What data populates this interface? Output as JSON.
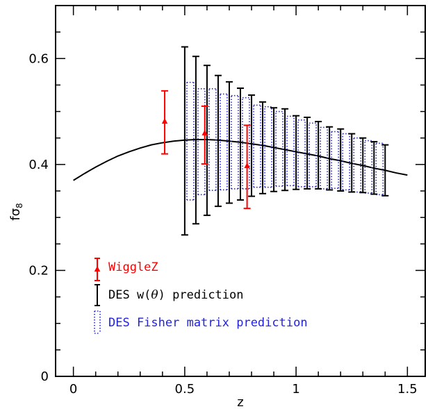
{
  "chart_data": {
    "type": "scatter",
    "xlabel": "z",
    "ylabel_main": "fσ",
    "ylabel_sub": "8",
    "xlim": [
      -0.08,
      1.58
    ],
    "ylim": [
      0,
      0.7
    ],
    "xticks": [
      {
        "value": 0,
        "label": "0"
      },
      {
        "value": 0.5,
        "label": "0.5"
      },
      {
        "value": 1,
        "label": "1"
      },
      {
        "value": 1.5,
        "label": "1.5"
      }
    ],
    "yticks": [
      {
        "value": 0,
        "label": "0"
      },
      {
        "value": 0.2,
        "label": "0.2"
      },
      {
        "value": 0.4,
        "label": "0.4"
      },
      {
        "value": 0.6,
        "label": "0.6"
      }
    ],
    "model_curve": {
      "color": "#000000",
      "x": [
        0.0,
        0.05,
        0.1,
        0.15,
        0.2,
        0.25,
        0.3,
        0.35,
        0.4,
        0.45,
        0.5,
        0.55,
        0.6,
        0.65,
        0.7,
        0.75,
        0.8,
        0.85,
        0.9,
        0.95,
        1.0,
        1.05,
        1.1,
        1.15,
        1.2,
        1.25,
        1.3,
        1.35,
        1.4,
        1.45,
        1.5
      ],
      "y": [
        0.37,
        0.383,
        0.395,
        0.406,
        0.416,
        0.424,
        0.431,
        0.437,
        0.441,
        0.444,
        0.446,
        0.447,
        0.447,
        0.446,
        0.444,
        0.442,
        0.439,
        0.436,
        0.432,
        0.428,
        0.424,
        0.42,
        0.416,
        0.411,
        0.407,
        0.402,
        0.398,
        0.393,
        0.389,
        0.384,
        0.38
      ]
    },
    "series": [
      {
        "name": "WiggleZ",
        "color": "#ff0000",
        "points": [
          {
            "x": 0.41,
            "y": 0.481,
            "low": 0.42,
            "high": 0.539
          },
          {
            "x": 0.59,
            "y": 0.459,
            "low": 0.401,
            "high": 0.51
          },
          {
            "x": 0.78,
            "y": 0.397,
            "low": 0.317,
            "high": 0.474
          }
        ]
      },
      {
        "name": "DES w(θ) prediction",
        "color": "#000000",
        "points": [
          {
            "x": 0.5,
            "low": 0.267,
            "high": 0.622
          },
          {
            "x": 0.55,
            "low": 0.288,
            "high": 0.604
          },
          {
            "x": 0.6,
            "low": 0.304,
            "high": 0.587
          },
          {
            "x": 0.65,
            "low": 0.321,
            "high": 0.568
          },
          {
            "x": 0.7,
            "low": 0.327,
            "high": 0.556
          },
          {
            "x": 0.75,
            "low": 0.333,
            "high": 0.544
          },
          {
            "x": 0.8,
            "low": 0.34,
            "high": 0.531
          },
          {
            "x": 0.85,
            "low": 0.345,
            "high": 0.518
          },
          {
            "x": 0.9,
            "low": 0.349,
            "high": 0.507
          },
          {
            "x": 0.95,
            "low": 0.351,
            "high": 0.505
          },
          {
            "x": 1.0,
            "low": 0.353,
            "high": 0.492
          },
          {
            "x": 1.05,
            "low": 0.354,
            "high": 0.489
          },
          {
            "x": 1.1,
            "low": 0.354,
            "high": 0.481
          },
          {
            "x": 1.15,
            "low": 0.352,
            "high": 0.471
          },
          {
            "x": 1.2,
            "low": 0.35,
            "high": 0.467
          },
          {
            "x": 1.25,
            "low": 0.348,
            "high": 0.458
          },
          {
            "x": 1.3,
            "low": 0.347,
            "high": 0.45
          },
          {
            "x": 1.35,
            "low": 0.344,
            "high": 0.443
          },
          {
            "x": 1.4,
            "low": 0.341,
            "high": 0.437
          }
        ]
      },
      {
        "name": "DES Fisher matrix prediction",
        "color": "#2222dd",
        "points": [
          {
            "x": 0.525,
            "low": 0.333,
            "high": 0.555
          },
          {
            "x": 0.575,
            "low": 0.343,
            "high": 0.543
          },
          {
            "x": 0.625,
            "low": 0.351,
            "high": 0.543
          },
          {
            "x": 0.675,
            "low": 0.352,
            "high": 0.533
          },
          {
            "x": 0.725,
            "low": 0.354,
            "high": 0.53
          },
          {
            "x": 0.775,
            "low": 0.354,
            "high": 0.526
          },
          {
            "x": 0.825,
            "low": 0.357,
            "high": 0.512
          },
          {
            "x": 0.875,
            "low": 0.357,
            "high": 0.509
          },
          {
            "x": 0.925,
            "low": 0.359,
            "high": 0.5
          },
          {
            "x": 0.975,
            "low": 0.36,
            "high": 0.491
          },
          {
            "x": 1.025,
            "low": 0.358,
            "high": 0.484
          },
          {
            "x": 1.075,
            "low": 0.358,
            "high": 0.478
          },
          {
            "x": 1.125,
            "low": 0.354,
            "high": 0.47
          },
          {
            "x": 1.175,
            "low": 0.355,
            "high": 0.462
          },
          {
            "x": 1.225,
            "low": 0.352,
            "high": 0.458
          },
          {
            "x": 1.275,
            "low": 0.348,
            "high": 0.45
          },
          {
            "x": 1.325,
            "low": 0.346,
            "high": 0.445
          },
          {
            "x": 1.375,
            "low": 0.343,
            "high": 0.44
          }
        ]
      }
    ],
    "legend": {
      "placement": "bottom-left",
      "items": [
        {
          "label": "WiggleZ",
          "color": "#ff0000",
          "style": "triangle-errorbar"
        },
        {
          "label_prefix": "DES w(",
          "label_theta": "θ",
          "label_suffix": ") prediction",
          "color": "#000000",
          "style": "solid-errorbar"
        },
        {
          "label": "DES Fisher matrix prediction",
          "color": "#2222dd",
          "style": "dotted-box"
        }
      ]
    }
  }
}
